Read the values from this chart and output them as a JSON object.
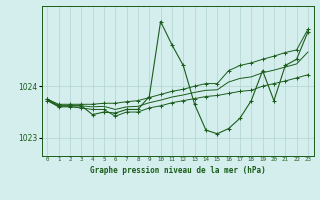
{
  "title": "Graphe pression niveau de la mer (hPa)",
  "background_color": "#d4eeed",
  "grid_color": "#b0d4d0",
  "line_color": "#1a5c1a",
  "x_labels": [
    "0",
    "1",
    "2",
    "3",
    "4",
    "5",
    "6",
    "7",
    "8",
    "9",
    "10",
    "11",
    "12",
    "13",
    "14",
    "15",
    "16",
    "17",
    "18",
    "19",
    "20",
    "21",
    "22",
    "23"
  ],
  "xlim": [
    -0.5,
    23.5
  ],
  "ylim": [
    1022.65,
    1025.55
  ],
  "yticks": [
    1023,
    1024
  ],
  "hours": [
    0,
    1,
    2,
    3,
    4,
    5,
    6,
    7,
    8,
    9,
    10,
    11,
    12,
    13,
    14,
    15,
    16,
    17,
    18,
    19,
    20,
    21,
    22,
    23
  ],
  "main_data": [
    1023.75,
    1023.62,
    1023.62,
    1023.62,
    1023.45,
    1023.5,
    1023.48,
    1023.55,
    1023.55,
    1023.8,
    1025.25,
    1024.8,
    1024.4,
    1023.65,
    1023.15,
    1023.08,
    1023.18,
    1023.38,
    1023.72,
    1024.3,
    1023.72,
    1024.4,
    1024.52,
    1025.05
  ],
  "min_data": [
    1023.72,
    1023.6,
    1023.6,
    1023.58,
    1023.55,
    1023.55,
    1023.42,
    1023.5,
    1023.5,
    1023.58,
    1023.62,
    1023.68,
    1023.72,
    1023.76,
    1023.8,
    1023.82,
    1023.86,
    1023.9,
    1023.92,
    1024.0,
    1024.05,
    1024.1,
    1024.16,
    1024.22
  ],
  "max_data": [
    1023.75,
    1023.65,
    1023.65,
    1023.65,
    1023.65,
    1023.67,
    1023.67,
    1023.7,
    1023.72,
    1023.78,
    1023.84,
    1023.9,
    1023.94,
    1024.0,
    1024.05,
    1024.05,
    1024.3,
    1024.4,
    1024.45,
    1024.52,
    1024.58,
    1024.65,
    1024.7,
    1025.1
  ],
  "avg_data": [
    1023.73,
    1023.62,
    1023.62,
    1023.62,
    1023.6,
    1023.61,
    1023.55,
    1023.6,
    1023.61,
    1023.68,
    1023.73,
    1023.79,
    1023.83,
    1023.88,
    1023.92,
    1023.93,
    1024.08,
    1024.15,
    1024.18,
    1024.26,
    1024.31,
    1024.37,
    1024.43,
    1024.66
  ]
}
